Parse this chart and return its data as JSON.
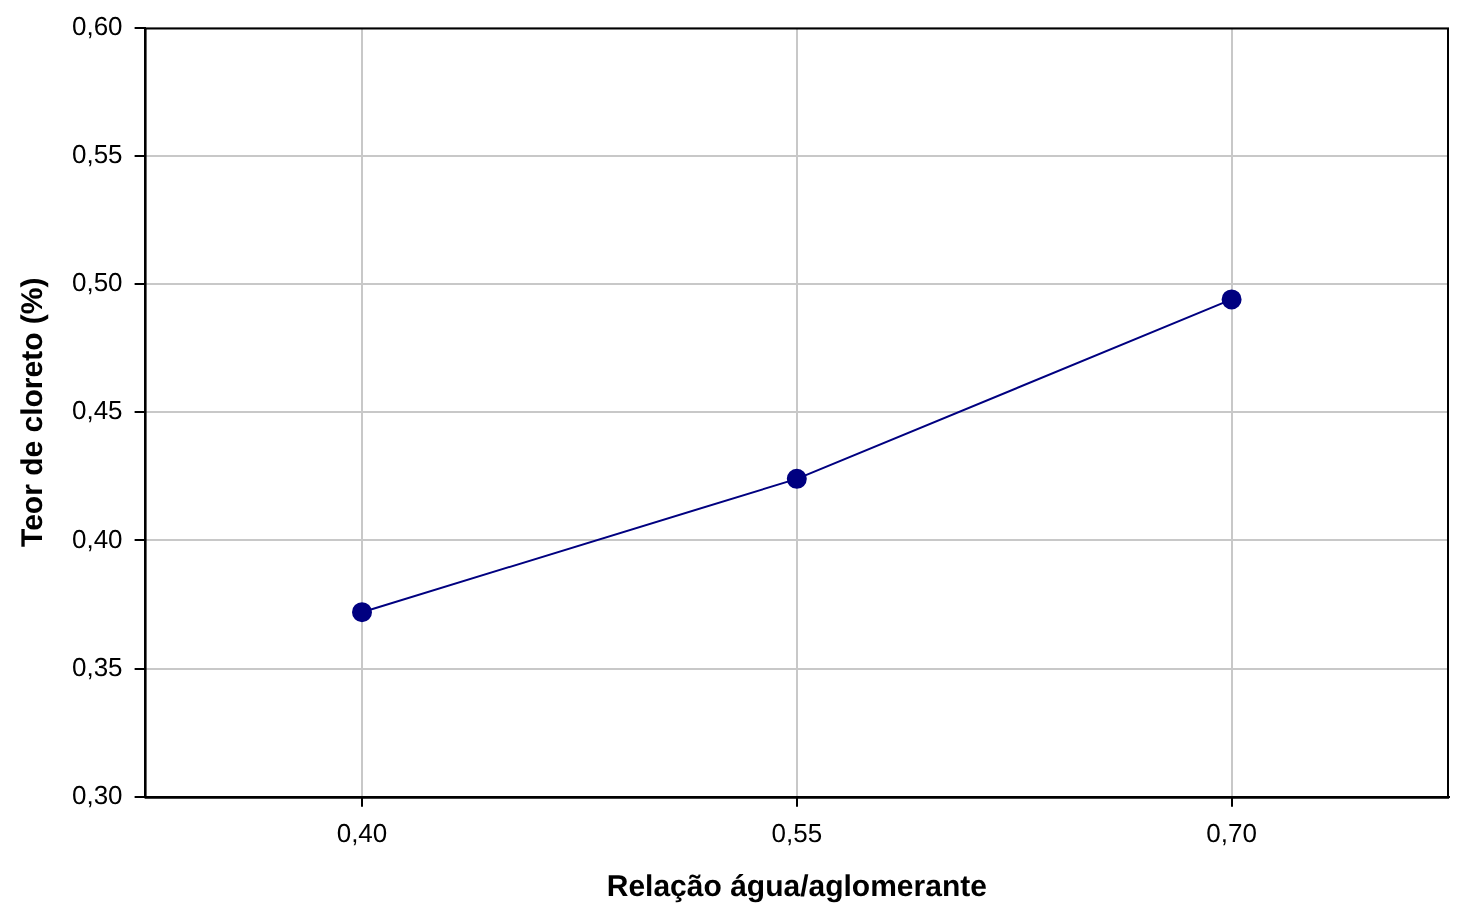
{
  "chart_data": {
    "type": "line",
    "xlabel": "Relação água/aglomerante",
    "ylabel": "Teor de cloreto (%)",
    "categories": [
      "0,40",
      "0,55",
      "0,70"
    ],
    "series": [
      {
        "color": "#000080",
        "values": [
          0.372,
          0.424,
          0.494
        ]
      }
    ],
    "ylim": [
      0.3,
      0.6
    ],
    "yticks": [
      {
        "value": 0.3,
        "label": "0,30"
      },
      {
        "value": 0.35,
        "label": "0,35"
      },
      {
        "value": 0.4,
        "label": "0,40"
      },
      {
        "value": 0.45,
        "label": "0,45"
      },
      {
        "value": 0.5,
        "label": "0,50"
      },
      {
        "value": 0.55,
        "label": "0,55"
      },
      {
        "value": 0.6,
        "label": "0,60"
      }
    ],
    "grid": true,
    "legend": false,
    "marker": "circle",
    "line_style": "solid"
  }
}
